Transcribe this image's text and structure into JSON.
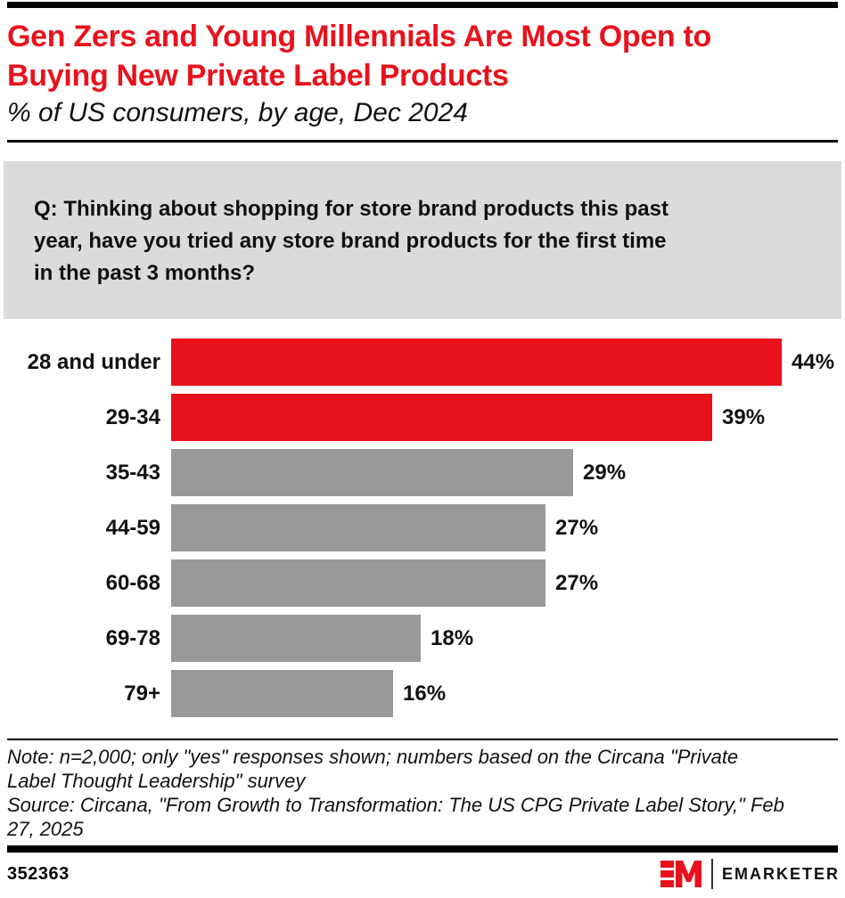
{
  "header": {
    "title_lines": [
      "Gen Zers and Young Millennials Are Most Open to",
      "Buying New Private Label Products"
    ],
    "subtitle": "% of US consumers, by age, Dec 2024"
  },
  "question": {
    "lines": [
      "Q: Thinking about shopping for store brand products this past",
      "year, have you tried any store brand products for the first time",
      "in the past 3 months?"
    ]
  },
  "chart_data": {
    "type": "bar",
    "orientation": "horizontal",
    "title": "Gen Zers and Young Millennials Are Most Open to Buying New Private Label Products",
    "subtitle": "% of US consumers, by age, Dec 2024",
    "question": "Q: Thinking about shopping for store brand products this past year, have you tried any store brand products for the first time in the past 3 months?",
    "categories": [
      "28 and under",
      "29-34",
      "35-43",
      "44-59",
      "60-68",
      "69-78",
      "79+"
    ],
    "values": [
      44,
      39,
      29,
      27,
      27,
      18,
      16
    ],
    "value_labels": [
      "44%",
      "39%",
      "29%",
      "27%",
      "27%",
      "18%",
      "16%"
    ],
    "highlighted": [
      true,
      true,
      false,
      false,
      false,
      false,
      false
    ],
    "colors": {
      "highlight": "#E8121C",
      "default": "#999999"
    },
    "xlim": [
      0,
      47
    ],
    "value_suffix": "%",
    "grid": false,
    "legend": false
  },
  "notes": {
    "lines": [
      "Note: n=2,000; only \"yes\" responses shown; numbers based on the Circana \"Private",
      "Label Thought Leadership\" survey",
      "Source: Circana, \"From Growth to Transformation: The US CPG Private Label Story,\" Feb",
      "27, 2025"
    ]
  },
  "footer": {
    "chart_id": "352363",
    "brand": "EMARKETER",
    "brand_red": "#E8121C"
  }
}
